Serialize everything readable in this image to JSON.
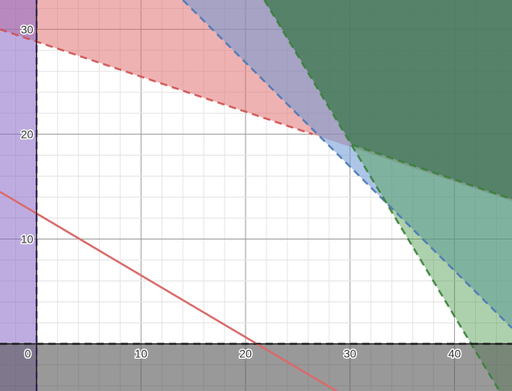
{
  "chart_data": {
    "type": "area",
    "title": "",
    "xlabel": "",
    "ylabel": "",
    "xlim": [
      -3.5,
      45.5
    ],
    "ylim": [
      -4.5,
      32.8
    ],
    "grid": true,
    "x_ticks": [
      "0",
      "10",
      "20",
      "30",
      "40"
    ],
    "y_ticks": [
      "10",
      "20",
      "30"
    ],
    "regions": [
      {
        "id": "red-half-plane",
        "boundary": {
          "x1": -3.5,
          "y1": 30,
          "x2": 26.4,
          "y2": 20
        },
        "side": "above",
        "dashed": true,
        "fill": "#e06666",
        "line": "#d05050"
      },
      {
        "id": "blue-half-plane",
        "boundary": {
          "x1": 14,
          "y1": 32.8,
          "x2": 45.5,
          "y2": 1.5
        },
        "side": "above",
        "dashed": true,
        "fill": "#6a98d4",
        "line": "#4a78b8"
      },
      {
        "id": "green-steep-half-plane",
        "boundary": {
          "x1": 21.8,
          "y1": 32.8,
          "x2": 44.3,
          "y2": -4.5
        },
        "side": "above",
        "dashed": true,
        "fill": "#4a9a4a",
        "line": "#3a7f3a"
      },
      {
        "id": "dark-green-half-plane",
        "boundary": {
          "x1": 21.8,
          "y1": 32.8,
          "x2": 30.2,
          "y2": 19
        },
        "side": "above",
        "dashed": true,
        "fill": "#356c4c",
        "line": "#3a7f3a",
        "second_boundary": {
          "x1": 30.2,
          "y1": 19,
          "x2": 45.5,
          "y2": 13.8
        }
      },
      {
        "id": "purple-half-plane",
        "boundary": {
          "x": 0
        },
        "side": "left",
        "dashed": true,
        "fill": "#8868c8",
        "line": "#6a4dc0"
      },
      {
        "id": "gray-half-plane",
        "boundary": {
          "y": 0
        },
        "side": "below",
        "dashed": true,
        "fill": "#555555",
        "line": "#222222"
      }
    ],
    "lines": [
      {
        "id": "red-line",
        "points": [
          [
            -3.5,
            14.5
          ],
          [
            28.7,
            -4.5
          ]
        ],
        "color": "#d96b6b"
      }
    ],
    "colors": {
      "minor_grid": "#e4e4e4",
      "major_grid": "#9a9a9a",
      "axis": "#1a1a1a"
    }
  }
}
